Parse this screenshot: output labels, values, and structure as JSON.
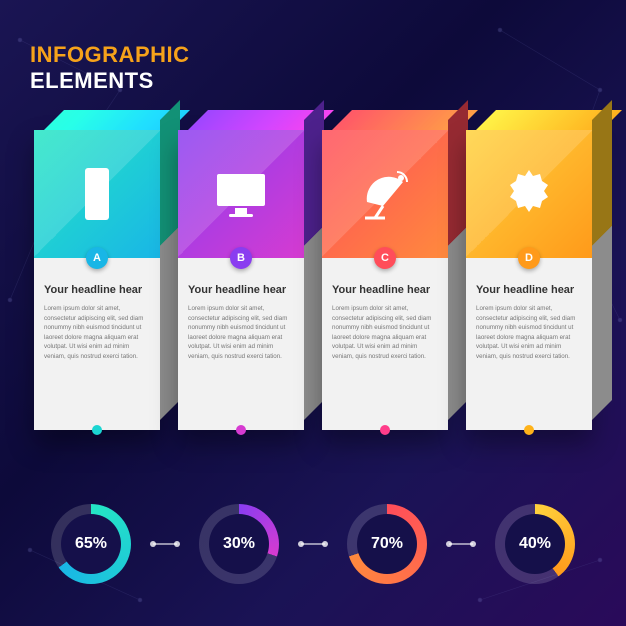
{
  "title": {
    "line1": "INFOGRAPHIC",
    "line2": "ELEMENTS",
    "line1_color": "#f6a21a",
    "line2_color": "#ffffff"
  },
  "background": {
    "grad_start": "#1a1553",
    "grad_end": "#2a0a5a"
  },
  "body_text": "Lorem ipsum dolor sit amet, consectetur adipiscing elit, sed diam nonummy nibh euismod tincidunt ut laoreet dolore magna aliquam erat volutpat. Ut wisi enim ad minim veniam, quis nostrud exerci tation.",
  "cards": [
    {
      "letter": "A",
      "icon": "phone",
      "headline": "Your headline hear",
      "grad_from": "#25e6c4",
      "grad_to": "#19b6e6",
      "badge_color": "#19b6e6",
      "dot_color": "#1bd6d2",
      "side_from": "#19cfa8",
      "side_to": "#c8c8c8"
    },
    {
      "letter": "B",
      "icon": "monitor",
      "headline": "Your headline hear",
      "grad_from": "#8a3df0",
      "grad_to": "#d63bd1",
      "badge_color": "#8a3df0",
      "dot_color": "#d63bd1",
      "side_from": "#6e2fc8",
      "side_to": "#c8c8c8"
    },
    {
      "letter": "C",
      "icon": "satellite",
      "headline": "Your headline hear",
      "grad_from": "#ff4d5a",
      "grad_to": "#ff8a3d",
      "badge_color": "#ff4d5a",
      "dot_color": "#ff3d8a",
      "side_from": "#d63c48",
      "side_to": "#c8c8c8"
    },
    {
      "letter": "D",
      "icon": "gear",
      "headline": "Your headline hear",
      "grad_from": "#ffd23d",
      "grad_to": "#ff9a1a",
      "badge_color": "#ff9a1a",
      "dot_color": "#ffb31a",
      "side_from": "#d9a820",
      "side_to": "#c8c8c8"
    }
  ],
  "donuts": [
    {
      "value": 65,
      "label": "65%",
      "grad_from": "#25e6c4",
      "grad_to": "#19b6e6",
      "track": "rgba(255,255,255,.15)"
    },
    {
      "value": 30,
      "label": "30%",
      "grad_from": "#8a3df0",
      "grad_to": "#d63bd1",
      "track": "rgba(255,255,255,.15)"
    },
    {
      "value": 70,
      "label": "70%",
      "grad_from": "#ff4d5a",
      "grad_to": "#ff8a3d",
      "track": "rgba(255,255,255,.15)"
    },
    {
      "value": 40,
      "label": "40%",
      "grad_from": "#ffd23d",
      "grad_to": "#ff9a1a",
      "track": "rgba(255,255,255,.15)"
    }
  ]
}
